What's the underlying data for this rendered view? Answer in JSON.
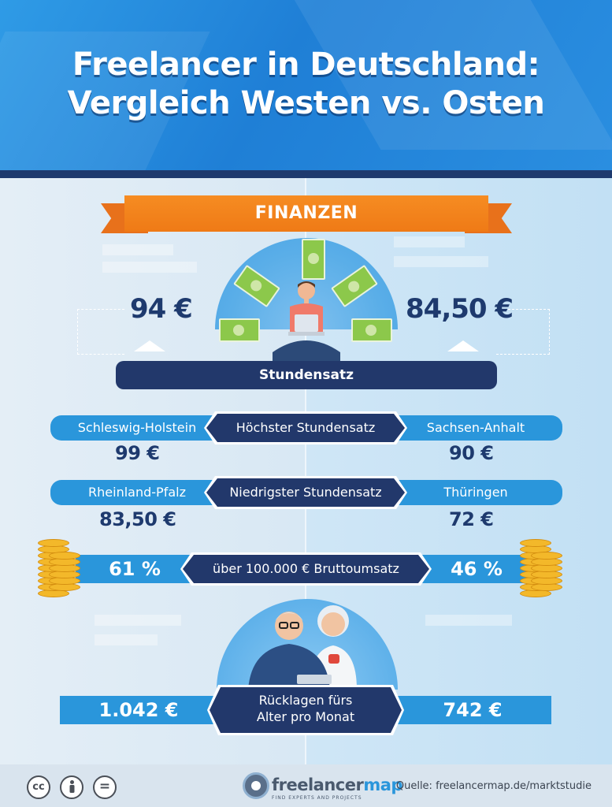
{
  "title": {
    "line1": "Freelancer in Deutschland:",
    "line2": "Vergleich Westen vs. Osten"
  },
  "section": "FINANZEN",
  "hourly": {
    "west": "94 €",
    "east": "84,50 €",
    "label": "Stundensatz"
  },
  "highest": {
    "label": "Höchster Stundensatz",
    "west_state": "Schleswig-Holstein",
    "west_value": "99 €",
    "east_state": "Sachsen-Anhalt",
    "east_value": "90 €"
  },
  "lowest": {
    "label": "Niedrigster Stundensatz",
    "west_state": "Rheinland-Pfalz",
    "west_value": "83,50 €",
    "east_state": "Thüringen",
    "east_value": "72 €"
  },
  "revenue": {
    "label": "über 100.000 € Bruttoumsatz",
    "west": "61 %",
    "east": "46 %"
  },
  "savings": {
    "label_line1": "Rücklagen fürs",
    "label_line2": "Alter pro Monat",
    "west": "1.042 €",
    "east": "742 €"
  },
  "footer": {
    "license_icons": [
      "cc-icon",
      "by-icon",
      "nd-icon"
    ],
    "license_glyphs": [
      "cc",
      "",
      "="
    ],
    "logo_main": "freelancer",
    "logo_accent": "map",
    "logo_tagline": "FIND EXPERTS AND PROJECTS",
    "source": "Quelle: freelancermap.de/marktstudie"
  },
  "colors": {
    "navy": "#22386b",
    "blue": "#2a96db",
    "orange": "#f68c22",
    "header": "#2a8ee0"
  }
}
